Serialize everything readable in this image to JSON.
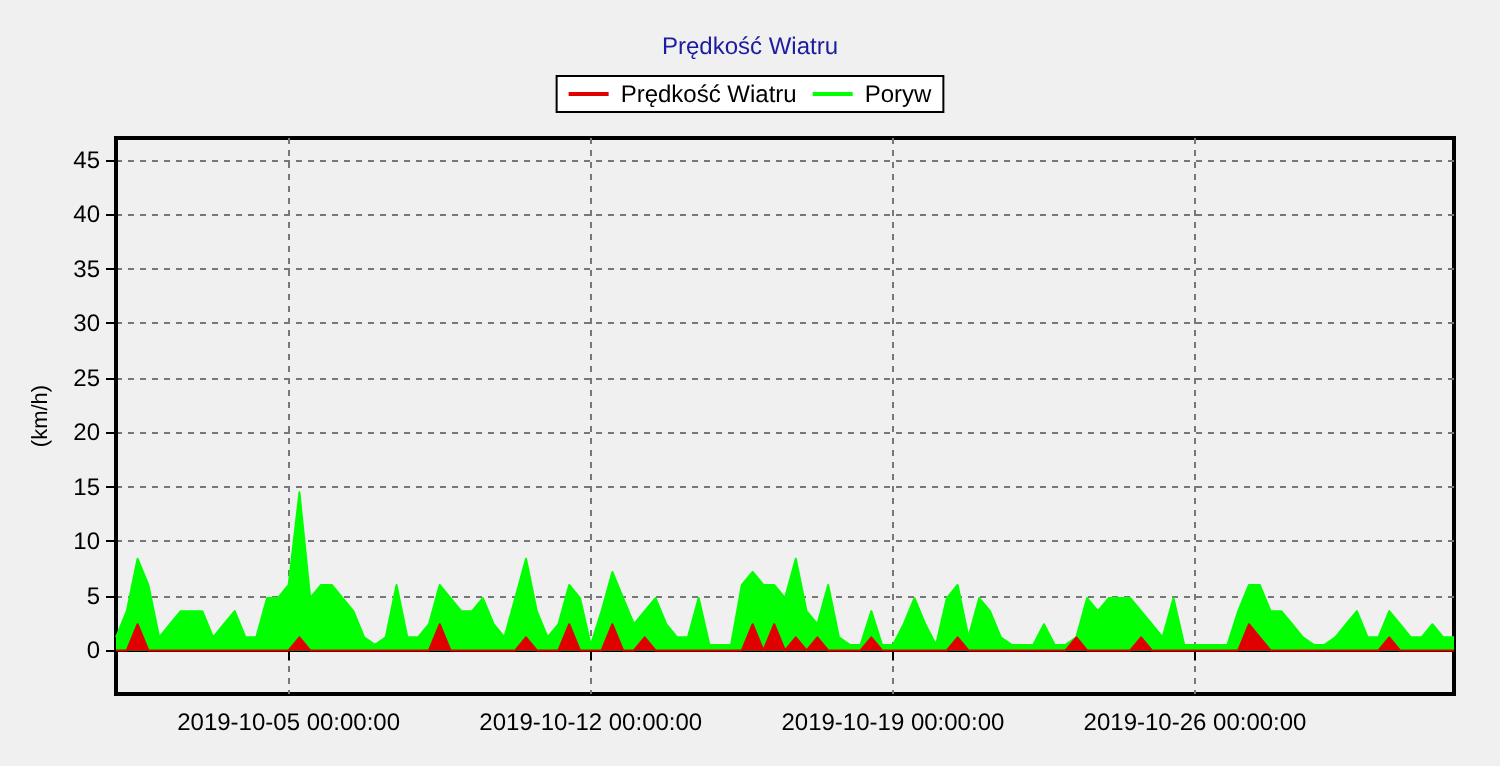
{
  "chart_data": {
    "type": "area",
    "title": "Prędkość Wiatru",
    "ylabel": "(km/h)",
    "x": [
      "2019-10-01T00:00",
      "2019-10-01T06:00",
      "2019-10-01T12:00",
      "2019-10-01T18:00",
      "2019-10-02T00:00",
      "2019-10-02T06:00",
      "2019-10-02T12:00",
      "2019-10-02T18:00",
      "2019-10-03T00:00",
      "2019-10-03T06:00",
      "2019-10-03T12:00",
      "2019-10-03T18:00",
      "2019-10-04T00:00",
      "2019-10-04T06:00",
      "2019-10-04T12:00",
      "2019-10-04T18:00",
      "2019-10-05T00:00",
      "2019-10-05T06:00",
      "2019-10-05T12:00",
      "2019-10-05T18:00",
      "2019-10-06T00:00",
      "2019-10-06T06:00",
      "2019-10-06T12:00",
      "2019-10-06T18:00",
      "2019-10-07T00:00",
      "2019-10-07T06:00",
      "2019-10-07T12:00",
      "2019-10-07T18:00",
      "2019-10-08T00:00",
      "2019-10-08T06:00",
      "2019-10-08T12:00",
      "2019-10-08T18:00",
      "2019-10-09T00:00",
      "2019-10-09T06:00",
      "2019-10-09T12:00",
      "2019-10-09T18:00",
      "2019-10-10T00:00",
      "2019-10-10T06:00",
      "2019-10-10T12:00",
      "2019-10-10T18:00",
      "2019-10-11T00:00",
      "2019-10-11T06:00",
      "2019-10-11T12:00",
      "2019-10-11T18:00",
      "2019-10-12T00:00",
      "2019-10-12T06:00",
      "2019-10-12T12:00",
      "2019-10-12T18:00",
      "2019-10-13T00:00",
      "2019-10-13T06:00",
      "2019-10-13T12:00",
      "2019-10-13T18:00",
      "2019-10-14T00:00",
      "2019-10-14T06:00",
      "2019-10-14T12:00",
      "2019-10-14T18:00",
      "2019-10-15T00:00",
      "2019-10-15T06:00",
      "2019-10-15T12:00",
      "2019-10-15T18:00",
      "2019-10-16T00:00",
      "2019-10-16T06:00",
      "2019-10-16T12:00",
      "2019-10-16T18:00",
      "2019-10-17T00:00",
      "2019-10-17T06:00",
      "2019-10-17T12:00",
      "2019-10-17T18:00",
      "2019-10-18T00:00",
      "2019-10-18T06:00",
      "2019-10-18T12:00",
      "2019-10-18T18:00",
      "2019-10-19T00:00",
      "2019-10-19T06:00",
      "2019-10-19T12:00",
      "2019-10-19T18:00",
      "2019-10-20T00:00",
      "2019-10-20T06:00",
      "2019-10-20T12:00",
      "2019-10-20T18:00",
      "2019-10-21T00:00",
      "2019-10-21T06:00",
      "2019-10-21T12:00",
      "2019-10-21T18:00",
      "2019-10-22T00:00",
      "2019-10-22T06:00",
      "2019-10-22T12:00",
      "2019-10-22T18:00",
      "2019-10-23T00:00",
      "2019-10-23T06:00",
      "2019-10-23T12:00",
      "2019-10-23T18:00",
      "2019-10-24T00:00",
      "2019-10-24T06:00",
      "2019-10-24T12:00",
      "2019-10-24T18:00",
      "2019-10-25T00:00",
      "2019-10-25T06:00",
      "2019-10-25T12:00",
      "2019-10-25T18:00",
      "2019-10-26T00:00",
      "2019-10-26T06:00",
      "2019-10-26T12:00",
      "2019-10-26T18:00",
      "2019-10-27T00:00",
      "2019-10-27T06:00",
      "2019-10-27T12:00",
      "2019-10-27T18:00",
      "2019-10-28T00:00",
      "2019-10-28T06:00",
      "2019-10-28T12:00",
      "2019-10-28T18:00",
      "2019-10-29T00:00",
      "2019-10-29T06:00",
      "2019-10-29T12:00",
      "2019-10-29T18:00",
      "2019-10-30T00:00",
      "2019-10-30T06:00",
      "2019-10-30T12:00",
      "2019-10-30T18:00",
      "2019-10-31T00:00",
      "2019-10-31T06:00",
      "2019-10-31T12:00",
      "2019-10-31T18:00",
      "2019-11-01T00:00"
    ],
    "series": [
      {
        "name": "Prędkość Wiatru",
        "color": "#e00000",
        "values": [
          0,
          0,
          2.4,
          0,
          0,
          0,
          0,
          0,
          0,
          0,
          0,
          0,
          0,
          0,
          0,
          0,
          0,
          1.2,
          0,
          0,
          0,
          0,
          0,
          0,
          0,
          0,
          0,
          0,
          0,
          0,
          2.4,
          0,
          0,
          0,
          0,
          0,
          0,
          0,
          1.2,
          0,
          0,
          0,
          2.4,
          0,
          0,
          0,
          2.4,
          0,
          0,
          1.2,
          0,
          0,
          0,
          0,
          0,
          0,
          0,
          0,
          0,
          2.4,
          0,
          2.4,
          0,
          1.2,
          0,
          1.2,
          0,
          0,
          0,
          0,
          1.2,
          0,
          0,
          0,
          0,
          0,
          0,
          0,
          1.2,
          0,
          0,
          0,
          0,
          0,
          0,
          0,
          0,
          0,
          0,
          1.2,
          0,
          0,
          0,
          0,
          0,
          1.2,
          0,
          0,
          0,
          0,
          0,
          0,
          0,
          0,
          0,
          2.4,
          1.2,
          0,
          0,
          0,
          0,
          0,
          0,
          0,
          0,
          0,
          0,
          0,
          1.2,
          0,
          0,
          0,
          0,
          0,
          0
        ]
      },
      {
        "name": "Poryw",
        "color": "#00ff00",
        "values": [
          1.2,
          3.6,
          8.4,
          6,
          1.2,
          2.4,
          3.6,
          3.6,
          3.6,
          1.2,
          2.4,
          3.6,
          1.2,
          1.2,
          4.8,
          4.8,
          6,
          14.5,
          4.8,
          6,
          6,
          4.8,
          3.6,
          1.2,
          0.5,
          1.2,
          6,
          1.2,
          1.2,
          2.4,
          6,
          4.8,
          3.6,
          3.6,
          4.8,
          2.4,
          1.2,
          4.8,
          8.4,
          3.6,
          1.2,
          2.4,
          6,
          4.8,
          0.5,
          3.6,
          7.2,
          4.8,
          2.4,
          3.6,
          4.8,
          2.4,
          1.2,
          1.2,
          4.8,
          0.5,
          0.5,
          0.5,
          6,
          7.2,
          6,
          6,
          4.8,
          8.4,
          3.6,
          2.4,
          6,
          1.2,
          0.5,
          0.5,
          3.6,
          0.5,
          0.5,
          2.4,
          4.8,
          2.4,
          0.5,
          4.8,
          6,
          1.2,
          4.8,
          3.6,
          1.2,
          0.5,
          0.5,
          0.5,
          2.4,
          0.5,
          0.5,
          1.2,
          4.8,
          3.6,
          4.8,
          4.8,
          4.8,
          3.6,
          2.4,
          1.2,
          4.8,
          0.5,
          0.5,
          0.5,
          0.5,
          0.5,
          3.6,
          6,
          6,
          3.6,
          3.6,
          2.4,
          1.2,
          0.5,
          0.5,
          1.2,
          2.4,
          3.6,
          1.2,
          1.2,
          3.6,
          2.4,
          1.2,
          1.2,
          2.4,
          1.2,
          1.2
        ]
      }
    ],
    "xlim": [
      "2019-10-01T00:00",
      "2019-11-01T00:00"
    ],
    "xticks": [
      {
        "value": "2019-10-05",
        "label": "2019-10-05 00:00:00"
      },
      {
        "value": "2019-10-12",
        "label": "2019-10-12 00:00:00"
      },
      {
        "value": "2019-10-19",
        "label": "2019-10-19 00:00:00"
      },
      {
        "value": "2019-10-26",
        "label": "2019-10-26 00:00:00"
      }
    ],
    "ylim": [
      -4,
      47
    ],
    "yticks": [
      0,
      5,
      10,
      15,
      20,
      25,
      30,
      35,
      40,
      45
    ],
    "grid": true,
    "legend": "top"
  }
}
